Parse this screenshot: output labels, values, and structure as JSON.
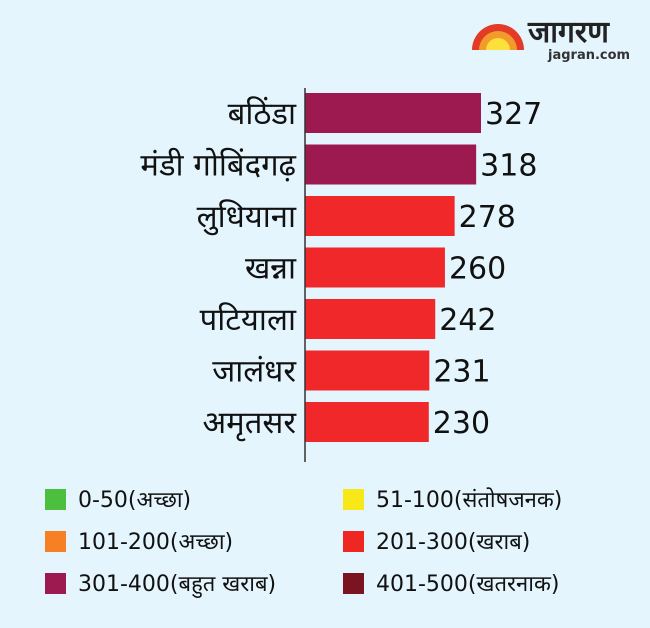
{
  "logo": {
    "name": "जागरण",
    "site": "jagran.com"
  },
  "chart_data": {
    "type": "bar",
    "orientation": "horizontal",
    "categories": [
      "बठिंडा",
      "मंडी गोबिंदगढ़",
      "लुधियाना",
      "खन्ना",
      "पटियाला",
      "जालंधर",
      "अमृतसर"
    ],
    "values": [
      327,
      318,
      278,
      260,
      242,
      231,
      230
    ],
    "colors": [
      "#9c1a50",
      "#9c1a50",
      "#f0282a",
      "#f0282a",
      "#f0282a",
      "#f0282a",
      "#f0282a"
    ],
    "xlim": [
      0,
      400
    ],
    "legend": [
      {
        "label": "0-50(अच्छा)",
        "color": "#4cbf3f"
      },
      {
        "label": "51-100(संतोषजनक)",
        "color": "#f8e81a"
      },
      {
        "label": "101-200(अच्छा)",
        "color": "#f78025"
      },
      {
        "label": "201-300(खराब)",
        "color": "#ee2723"
      },
      {
        "label": "301-400(बहुत खराब)",
        "color": "#9c1a50"
      },
      {
        "label": "401-500(खतरनाक)",
        "color": "#7a1420"
      }
    ]
  }
}
